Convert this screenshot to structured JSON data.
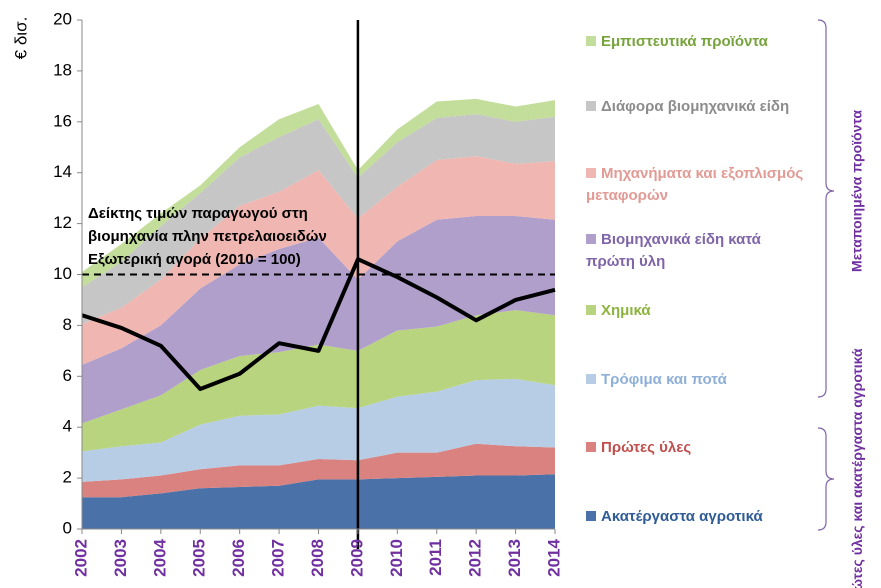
{
  "chart_data": {
    "type": "stacked-area",
    "y_label": "€ δισ.",
    "categories": [
      "2002",
      "2003",
      "2004",
      "2005",
      "2006",
      "2007",
      "2008",
      "2009",
      "2010",
      "2011",
      "2012",
      "2013",
      "2014"
    ],
    "series": [
      {
        "name": "Ακατέργαστα αγροτικά",
        "color": "#4a72a8",
        "text_color": "#2f5c96",
        "values": [
          1.25,
          1.25,
          1.4,
          1.6,
          1.65,
          1.7,
          1.95,
          1.95,
          2.0,
          2.05,
          2.1,
          2.1,
          2.15
        ]
      },
      {
        "name": "Πρώτες ύλες",
        "color": "#d9827f",
        "text_color": "#c0504d",
        "values": [
          0.6,
          0.7,
          0.7,
          0.75,
          0.85,
          0.8,
          0.8,
          0.75,
          1.0,
          0.95,
          1.25,
          1.15,
          1.05
        ]
      },
      {
        "name": "Τρόφιμα και ποτά",
        "color": "#b7cde6",
        "text_color": "#8eb0d8",
        "values": [
          1.2,
          1.3,
          1.3,
          1.75,
          1.95,
          2.0,
          2.1,
          2.05,
          2.2,
          2.4,
          2.5,
          2.65,
          2.45
        ]
      },
      {
        "name": "Χημικά",
        "color": "#b9d47e",
        "text_color": "#8db43e",
        "values": [
          1.1,
          1.45,
          1.85,
          2.15,
          2.35,
          2.45,
          2.4,
          2.25,
          2.6,
          2.55,
          2.55,
          2.7,
          2.75
        ]
      },
      {
        "name": "Βιομηχανικά είδη κατά πρώτη ύλη",
        "color": "#b09fcb",
        "text_color": "#7f64a8",
        "values": [
          2.3,
          2.4,
          2.75,
          3.2,
          3.6,
          4.05,
          4.2,
          2.8,
          3.5,
          4.2,
          3.9,
          3.7,
          3.75
        ]
      },
      {
        "name": "Μηχανήματα και εξοπλισμός μεταφορών",
        "color": "#f0b7b2",
        "text_color": "#e29a94",
        "values": [
          1.6,
          1.6,
          1.8,
          1.95,
          2.3,
          2.25,
          2.65,
          2.4,
          2.15,
          2.35,
          2.35,
          2.05,
          2.3
        ]
      },
      {
        "name": "Διάφορα βιομηχανικά είδη",
        "color": "#c6c6c6",
        "text_color": "#8c8c8c",
        "values": [
          1.45,
          1.8,
          2.1,
          1.8,
          1.9,
          2.15,
          2.0,
          1.6,
          1.75,
          1.65,
          1.65,
          1.65,
          1.75
        ]
      },
      {
        "name": "Εμπιστευτικά προϊόντα",
        "color": "#c3de9a",
        "text_color": "#77a33c",
        "values": [
          0.6,
          0.7,
          0.5,
          0.3,
          0.4,
          0.7,
          0.6,
          0.3,
          0.5,
          0.65,
          0.6,
          0.6,
          0.65
        ]
      }
    ],
    "line": {
      "color": "#000000",
      "values": [
        8.4,
        7.9,
        7.2,
        5.5,
        6.1,
        7.3,
        7.0,
        10.6,
        9.9,
        9.1,
        8.2,
        9.0,
        9.4
      ]
    },
    "reference_line": 10,
    "vline_category": "2009",
    "annotation": [
      "Δείκτης τιμών παραγωγού στη",
      "βιομηχανία πλην πετρελαιοειδών",
      "Εξωτερική αγορά  (2010 = 100)"
    ],
    "group_labels": [
      "Μεταποιημένα προϊόντα",
      "Πρώτες ύλες και ακατέργαστα αγροτικά"
    ],
    "ylim": [
      0,
      20
    ],
    "yticks": [
      0,
      2,
      4,
      6,
      8,
      10,
      12,
      14,
      16,
      18,
      20
    ]
  }
}
